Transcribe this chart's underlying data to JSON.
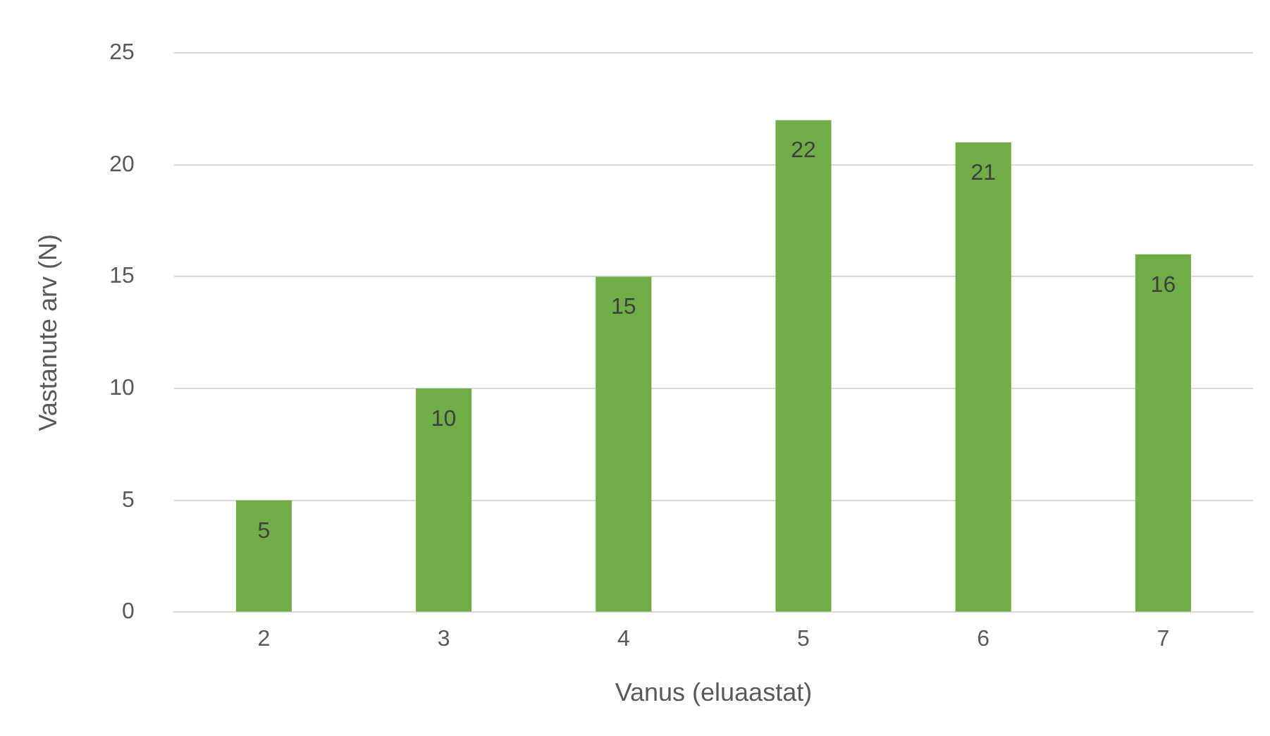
{
  "chart_data": {
    "type": "bar",
    "xlabel": "Vanus (eluaastat)",
    "ylabel": "Vastanute arv (N)",
    "categories": [
      "2",
      "3",
      "4",
      "5",
      "6",
      "7"
    ],
    "values": [
      5,
      10,
      15,
      22,
      21,
      16
    ],
    "color": "#70ad47",
    "ylim": [
      0,
      25
    ],
    "yticks": [
      0,
      5,
      10,
      15,
      20,
      25
    ],
    "grid": "y",
    "legend": false,
    "data_labels": true
  }
}
